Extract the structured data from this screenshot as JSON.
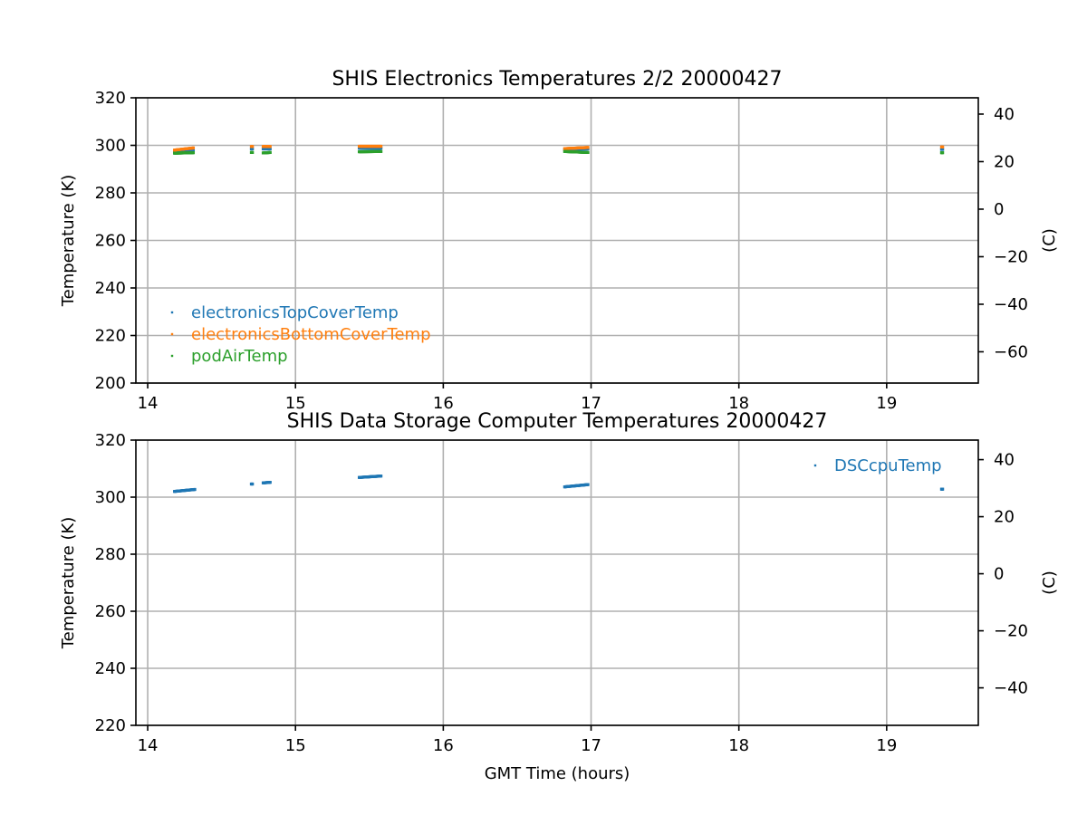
{
  "chart_data": [
    {
      "type": "scatter",
      "title": "SHIS Electronics Temperatures 2/2 20000427",
      "xlabel": "",
      "ylabel": "Temperature (K)",
      "ylabel_right": "(C)",
      "xlim": [
        13.92,
        19.62
      ],
      "ylim": [
        200,
        320
      ],
      "x_ticks": [
        14,
        15,
        16,
        17,
        18,
        19
      ],
      "y_ticks": [
        200,
        220,
        240,
        260,
        280,
        300,
        320
      ],
      "y2_ticks": [
        40,
        20,
        0,
        -20,
        -40,
        -60
      ],
      "y2_offset": 273.15,
      "grid": true,
      "legend_position": "lower-left",
      "series": [
        {
          "name": "electronicsTopCoverTemp",
          "color": "#1f77b4",
          "segments": [
            {
              "x0": 14.18,
              "x1": 14.31,
              "y0": 297.5,
              "y1": 298.0
            },
            {
              "x0": 14.7,
              "x1": 14.71,
              "y0": 298.5,
              "y1": 298.5
            },
            {
              "x0": 14.78,
              "x1": 14.83,
              "y0": 298.5,
              "y1": 298.5
            },
            {
              "x0": 15.43,
              "x1": 15.58,
              "y0": 298.8,
              "y1": 298.8
            },
            {
              "x0": 16.82,
              "x1": 16.98,
              "y0": 298.3,
              "y1": 298.5
            },
            {
              "x0": 19.37,
              "x1": 19.38,
              "y0": 298.3,
              "y1": 298.3
            }
          ]
        },
        {
          "name": "electronicsBottomCoverTemp",
          "color": "#ff7f0e",
          "segments": [
            {
              "x0": 14.18,
              "x1": 14.31,
              "y0": 298.0,
              "y1": 298.9
            },
            {
              "x0": 14.7,
              "x1": 14.71,
              "y0": 299.5,
              "y1": 299.5
            },
            {
              "x0": 14.78,
              "x1": 14.83,
              "y0": 299.5,
              "y1": 299.5
            },
            {
              "x0": 15.43,
              "x1": 15.58,
              "y0": 299.6,
              "y1": 299.6
            },
            {
              "x0": 16.82,
              "x1": 16.98,
              "y0": 298.6,
              "y1": 299.1
            },
            {
              "x0": 19.37,
              "x1": 19.38,
              "y0": 299.3,
              "y1": 299.3
            }
          ]
        },
        {
          "name": "podAirTemp",
          "color": "#2ca02c",
          "segments": [
            {
              "x0": 14.18,
              "x1": 14.31,
              "y0": 296.7,
              "y1": 296.9
            },
            {
              "x0": 14.7,
              "x1": 14.71,
              "y0": 297.0,
              "y1": 297.0
            },
            {
              "x0": 14.78,
              "x1": 14.83,
              "y0": 296.8,
              "y1": 297.0
            },
            {
              "x0": 15.43,
              "x1": 15.58,
              "y0": 297.3,
              "y1": 297.4
            },
            {
              "x0": 16.82,
              "x1": 16.98,
              "y0": 297.4,
              "y1": 297.0
            },
            {
              "x0": 19.37,
              "x1": 19.38,
              "y0": 296.9,
              "y1": 296.9
            }
          ]
        }
      ]
    },
    {
      "type": "scatter",
      "title": "SHIS Data Storage Computer Temperatures 20000427",
      "xlabel": "GMT Time (hours)",
      "ylabel": "Temperature (K)",
      "ylabel_right": "(C)",
      "xlim": [
        13.92,
        19.62
      ],
      "ylim": [
        220,
        320
      ],
      "x_ticks": [
        14,
        15,
        16,
        17,
        18,
        19
      ],
      "y_ticks": [
        220,
        240,
        260,
        280,
        300,
        320
      ],
      "y2_ticks": [
        40,
        20,
        0,
        -20,
        -40
      ],
      "y2_offset": 273.15,
      "grid": true,
      "legend_position": "upper-right",
      "series": [
        {
          "name": "DSCcpuTemp",
          "color": "#1f77b4",
          "segments": [
            {
              "x0": 14.18,
              "x1": 14.32,
              "y0": 302.0,
              "y1": 302.7
            },
            {
              "x0": 14.7,
              "x1": 14.71,
              "y0": 304.6,
              "y1": 304.6
            },
            {
              "x0": 14.78,
              "x1": 14.83,
              "y0": 305.0,
              "y1": 305.2
            },
            {
              "x0": 15.43,
              "x1": 15.58,
              "y0": 306.9,
              "y1": 307.4
            },
            {
              "x0": 16.82,
              "x1": 16.98,
              "y0": 303.6,
              "y1": 304.4
            },
            {
              "x0": 19.37,
              "x1": 19.38,
              "y0": 302.8,
              "y1": 302.8
            }
          ]
        }
      ]
    }
  ]
}
